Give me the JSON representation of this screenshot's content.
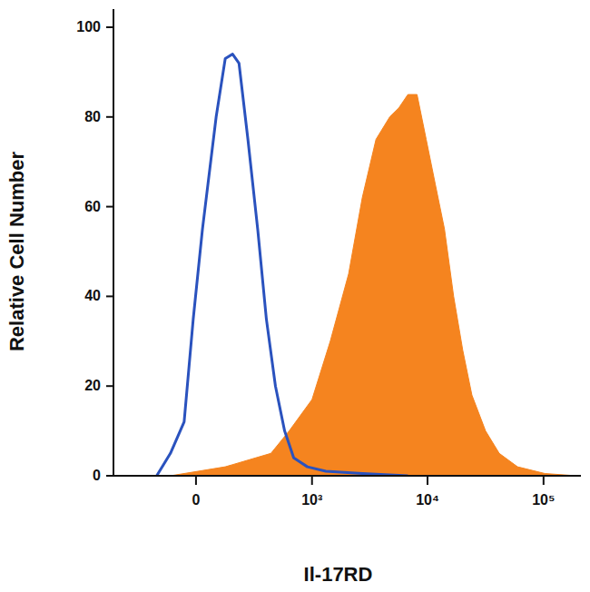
{
  "chart_data": {
    "type": "area",
    "x_label": "Il-17RD",
    "y_label": "Relative Cell Number",
    "log": "x",
    "xlim": [
      -500,
      210000
    ],
    "xticks": [
      0,
      {
        "value": 1000,
        "label": "10³"
      },
      {
        "value": 10000,
        "label": "10⁴"
      },
      {
        "value": 100000,
        "label": "10⁵"
      }
    ],
    "ylim": [
      0,
      100
    ],
    "yticks": [
      0,
      20,
      40,
      60,
      80,
      100
    ],
    "series": [
      {
        "type": "area",
        "color": "#f5841f",
        "x": [
          -107,
          124,
          424,
          626,
          1000,
          1444,
          2083,
          2735,
          3592,
          4720,
          5650,
          6770,
          8120,
          9740,
          11670,
          14000,
          16790,
          20120,
          24120,
          31640,
          41510,
          59690,
          102800,
          193700
        ],
        "values": [
          0,
          2,
          5,
          10,
          17,
          30,
          45,
          62,
          75,
          80,
          82,
          85,
          85,
          75,
          65,
          55,
          40,
          28,
          18,
          10,
          5,
          2,
          0.5,
          0
        ]
      },
      {
        "type": "line",
        "color": "#2a52be",
        "x": [
          -174,
          -107,
          -48,
          -11,
          26,
          83,
          124,
          160,
          194,
          247,
          314,
          383,
          468,
          569,
          688,
          911,
          1320,
          2740,
          6770
        ],
        "values": [
          0,
          5,
          12,
          35,
          55,
          80,
          93,
          94,
          92,
          75,
          55,
          35,
          20,
          10,
          4,
          2,
          1,
          0.5,
          0
        ]
      }
    ]
  }
}
